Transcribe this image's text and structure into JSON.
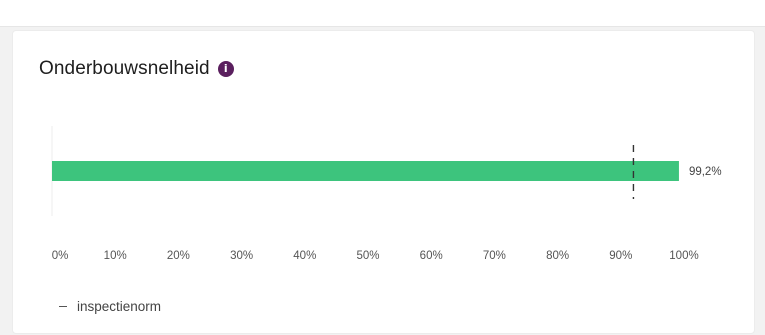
{
  "title": "Onderbouwsnelheid",
  "info_icon": "info-icon",
  "colors": {
    "bar": "#3dc47d",
    "norm_line": "#333333",
    "info": "#5a1f5e"
  },
  "legend": {
    "norm_label": "inspectienorm"
  },
  "chart_data": {
    "type": "bar",
    "orientation": "horizontal",
    "categories": [
      ""
    ],
    "values": [
      99.2
    ],
    "value_labels": [
      "99,2%"
    ],
    "norm": 92,
    "xlim": [
      0,
      100
    ],
    "x_ticks": [
      "0%",
      "10%",
      "20%",
      "30%",
      "40%",
      "50%",
      "60%",
      "70%",
      "80%",
      "90%",
      "100%"
    ],
    "grid": false,
    "legend": [
      "inspectienorm"
    ]
  }
}
